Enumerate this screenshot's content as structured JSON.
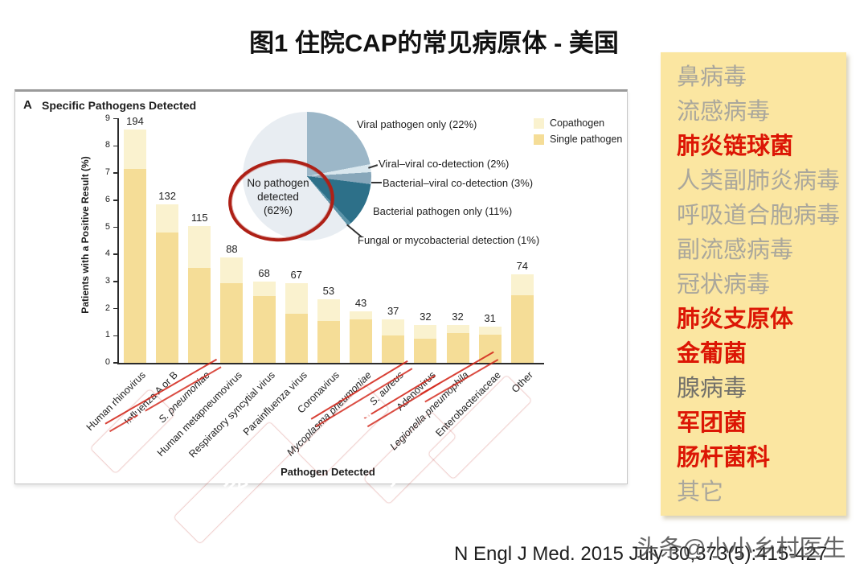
{
  "page": {
    "title": "图1 住院CAP的常见病原体 - 美国",
    "citation": "N Engl J Med. 2015 July 30,373(5):415-427",
    "watermark": "头条@小小乡村医生"
  },
  "panel": {
    "label": "A",
    "title": "Specific Pathogens Detected"
  },
  "legend": {
    "position": "top-right",
    "items": [
      {
        "label": "Copathogen",
        "color": "#faf2cf"
      },
      {
        "label": "Single pathogen",
        "color": "#f5dd97"
      }
    ]
  },
  "chart_data": [
    {
      "type": "bar",
      "stacked": true,
      "title": "Specific Pathogens Detected",
      "xlabel": "Pathogen Detected",
      "ylabel": "Patients with a Positive Result (%)",
      "ylim": [
        0,
        9
      ],
      "yticks": [
        0,
        1,
        2,
        3,
        4,
        5,
        6,
        7,
        8,
        9
      ],
      "grid": false,
      "categories": [
        "Human rhinovirus",
        "Influenza A or B",
        "S. pneumoniae",
        "Human metapneumovirus",
        "Respiratory syncytial virus",
        "Parainfluenza virus",
        "Coronavirus",
        "Mycoplasma pneumoniae",
        "S. aureus",
        "Adenovirus",
        "Legionella pneumophila",
        "Enterobacteriaceae",
        "Other"
      ],
      "italic_categories": [
        false,
        false,
        true,
        false,
        false,
        false,
        false,
        true,
        true,
        false,
        true,
        false,
        false
      ],
      "counts": [
        194,
        132,
        115,
        88,
        68,
        67,
        53,
        43,
        37,
        32,
        32,
        31,
        74
      ],
      "series": [
        {
          "name": "Single pathogen",
          "color": "#f5dd97",
          "values": [
            7.15,
            4.8,
            3.5,
            2.95,
            2.45,
            1.8,
            1.55,
            1.6,
            1.0,
            0.9,
            1.1,
            1.05,
            2.5
          ]
        },
        {
          "name": "Copathogen",
          "color": "#faf2cf",
          "values": [
            1.45,
            1.05,
            1.55,
            0.95,
            0.55,
            1.15,
            0.8,
            0.3,
            0.6,
            0.5,
            0.3,
            0.3,
            0.75
          ]
        }
      ]
    },
    {
      "type": "pie",
      "slices": [
        {
          "label": "Viral pathogen only (22%)",
          "value": 22,
          "color": "#9cb7c8"
        },
        {
          "label": "Viral–viral co-detection (2%)",
          "value": 2,
          "color": "#d9e7ee"
        },
        {
          "label": "Bacterial–viral co-detection (3%)",
          "value": 3,
          "color": "#87a7ba"
        },
        {
          "label": "Bacterial pathogen only (11%)",
          "value": 11,
          "color": "#2d7089"
        },
        {
          "label": "Fungal or mycobacterial detection (1%)",
          "value": 1,
          "color": "#5d94a9"
        },
        {
          "label": "No pathogen detected (62%)",
          "value": 62,
          "color": "#e8edf2"
        }
      ],
      "center_label_lines": [
        "No pathogen",
        "detected",
        "(62%)"
      ],
      "annotation": "red hand-drawn circle around no-pathogen label"
    }
  ],
  "stamps": [
    {
      "text": "肺链"
    },
    {
      "text": "肺炎支原体"
    },
    {
      "text": "金葡菌"
    },
    {
      "text": "军团菌"
    },
    {
      "text": "肠杆菌科"
    }
  ],
  "sidebar": {
    "items": [
      {
        "label": "鼻病毒",
        "emphasis": "muted"
      },
      {
        "label": "流感病毒",
        "emphasis": "muted"
      },
      {
        "label": "肺炎链球菌",
        "emphasis": "red"
      },
      {
        "label": "人类副肺炎病毒",
        "emphasis": "muted"
      },
      {
        "label": "呼吸道合胞病毒",
        "emphasis": "muted"
      },
      {
        "label": "副流感病毒",
        "emphasis": "muted"
      },
      {
        "label": "冠状病毒",
        "emphasis": "muted"
      },
      {
        "label": "肺炎支原体",
        "emphasis": "red"
      },
      {
        "label": "金葡菌",
        "emphasis": "red"
      },
      {
        "label": "腺病毒",
        "emphasis": "dark"
      },
      {
        "label": "军团菌",
        "emphasis": "red"
      },
      {
        "label": "肠杆菌科",
        "emphasis": "red"
      },
      {
        "label": "其它",
        "emphasis": "muted"
      }
    ]
  },
  "colors": {
    "stamp_red": "#e3261a",
    "underline_red": "#d3271b",
    "sidebar_bg": "#fbe6a1"
  }
}
